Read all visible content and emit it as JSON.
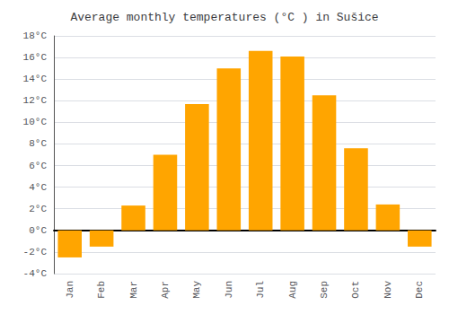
{
  "chart_data": {
    "type": "bar",
    "title": "Average monthly temperatures (°C ) in Sušice",
    "categories": [
      "Jan",
      "Feb",
      "Mar",
      "Apr",
      "May",
      "Jun",
      "Jul",
      "Aug",
      "Sep",
      "Oct",
      "Nov",
      "Dec"
    ],
    "values": [
      -2.5,
      -1.5,
      2.3,
      7.0,
      11.7,
      15.0,
      16.6,
      16.1,
      12.5,
      7.6,
      2.4,
      -1.5
    ],
    "color": "#FFA500",
    "ylim": [
      -4,
      18
    ],
    "yticks": [
      {
        "value": -4,
        "label": "-4°C"
      },
      {
        "value": -2,
        "label": "-2°C"
      },
      {
        "value": 0,
        "label": "0°C"
      },
      {
        "value": 2,
        "label": "2°C"
      },
      {
        "value": 4,
        "label": "4°C"
      },
      {
        "value": 6,
        "label": "6°C"
      },
      {
        "value": 8,
        "label": "8°C"
      },
      {
        "value": 10,
        "label": "10°C"
      },
      {
        "value": 12,
        "label": "12°C"
      },
      {
        "value": 14,
        "label": "14°C"
      },
      {
        "value": 16,
        "label": "16°C"
      },
      {
        "value": 18,
        "label": "18°C"
      }
    ],
    "grid": true
  }
}
